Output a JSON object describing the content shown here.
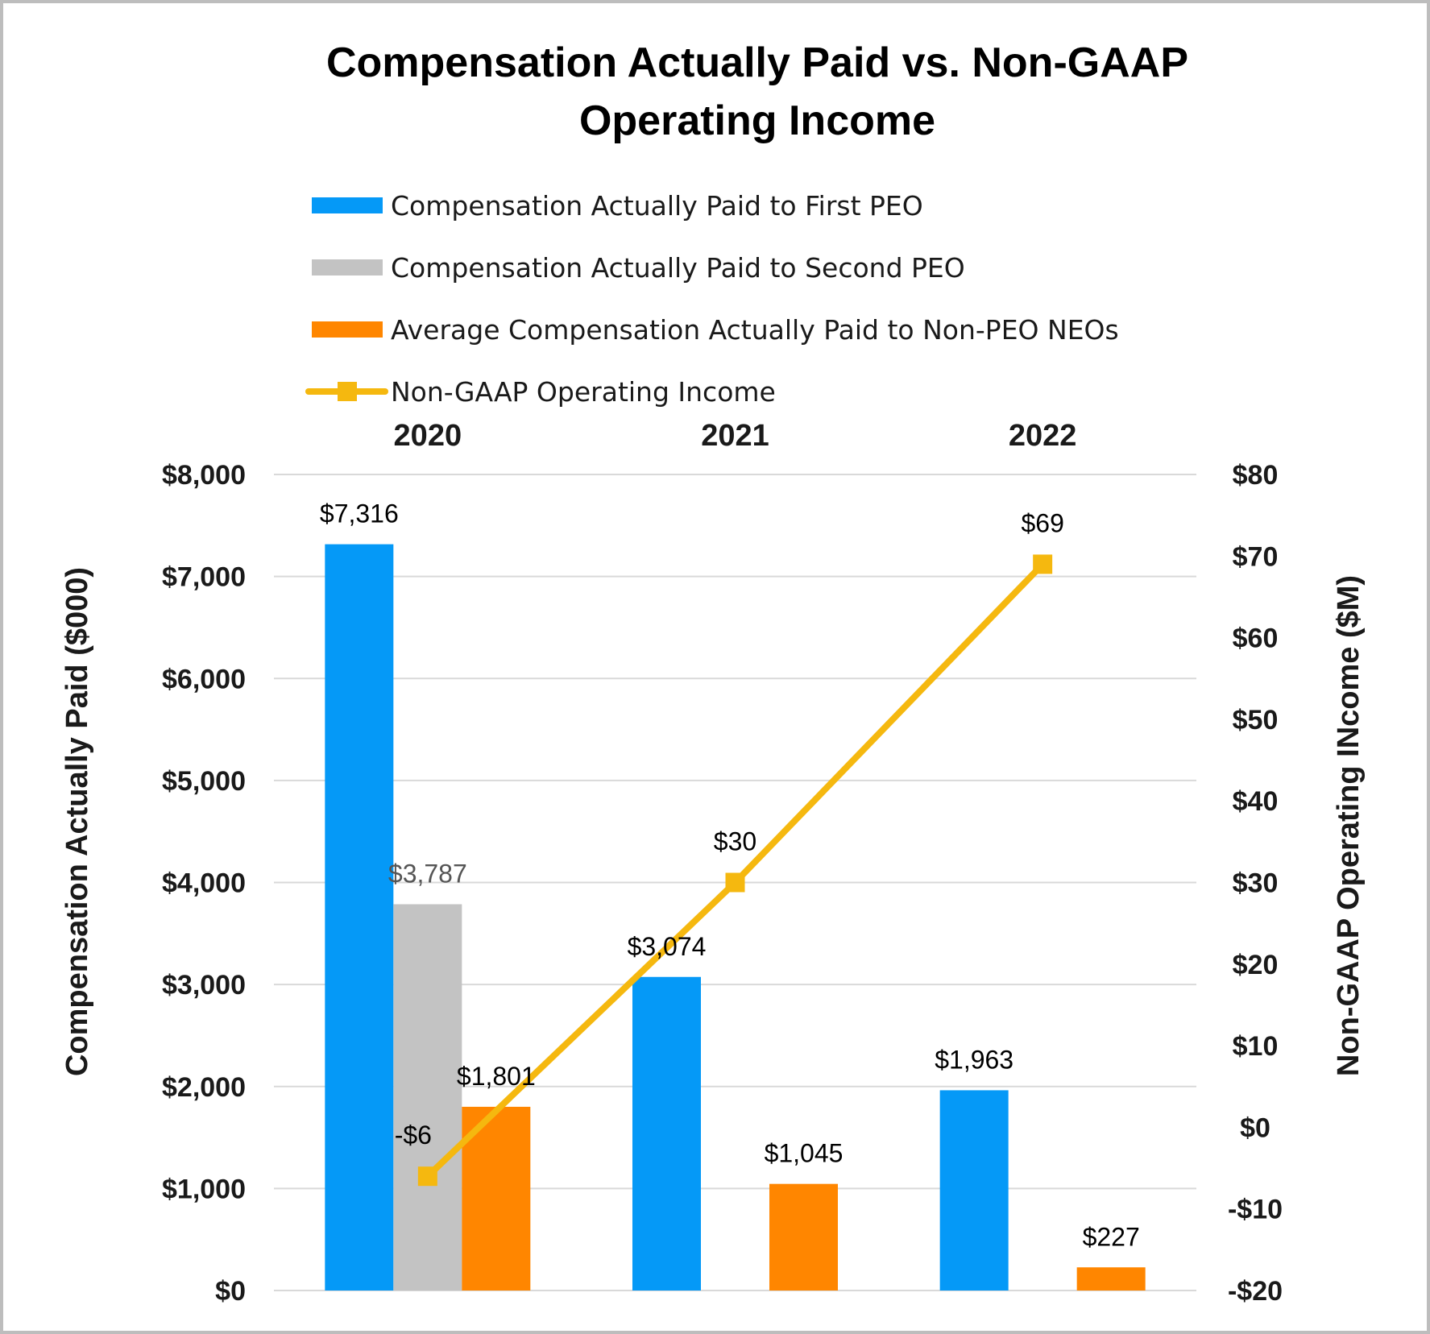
{
  "chart_data": {
    "type": "bar",
    "title_lines": [
      "Compensation Actually Paid vs. Non-GAAP",
      "Operating Income"
    ],
    "categories": [
      "2020",
      "2021",
      "2022"
    ],
    "series": [
      {
        "name": "Compensation Actually Paid to First PEO",
        "kind": "bar",
        "axis": "left",
        "color": "#0599f7",
        "values": [
          7316,
          3074,
          1963
        ],
        "labels": [
          "$7,316",
          "$3,074",
          "$1,963"
        ]
      },
      {
        "name": "Compensation Actually Paid to Second PEO",
        "kind": "bar",
        "axis": "left",
        "color": "#c3c3c3",
        "values": [
          3787,
          null,
          null
        ],
        "labels": [
          "$3,787",
          "",
          ""
        ]
      },
      {
        "name": "Average Compensation Actually Paid to Non-PEO NEOs",
        "kind": "bar",
        "axis": "left",
        "color": "#ff8600",
        "values": [
          1801,
          1045,
          227
        ],
        "labels": [
          "$1,801",
          "$1,045",
          "$227"
        ]
      },
      {
        "name": "Non-GAAP Operating Income",
        "kind": "line",
        "axis": "right",
        "color": "#f5b80f",
        "values": [
          -6,
          30,
          69
        ],
        "labels": [
          "-$6",
          "$30",
          "$69"
        ]
      }
    ],
    "y_left": {
      "label": "Compensation Actually Paid ($000)",
      "range": [
        0,
        8000
      ],
      "ticks": [
        0,
        1000,
        2000,
        3000,
        4000,
        5000,
        6000,
        7000,
        8000
      ],
      "tick_labels": [
        "$0",
        "$1,000",
        "$2,000",
        "$3,000",
        "$4,000",
        "$5,000",
        "$6,000",
        "$7,000",
        "$8,000"
      ]
    },
    "y_right": {
      "label": "Non-GAAP Operating INcome ($M)",
      "range": [
        -20,
        80
      ],
      "ticks": [
        -20,
        -10,
        0,
        10,
        20,
        30,
        40,
        50,
        60,
        70,
        80
      ],
      "tick_labels": [
        "-$20",
        "-$10",
        "$0",
        "$10",
        "$20",
        "$30",
        "$40",
        "$50",
        "$60",
        "$70",
        "$80"
      ]
    },
    "legend_position": "top",
    "gridlines": true,
    "colors": {
      "grid": "#d9d9d9",
      "text": "#1a1a1a"
    }
  }
}
